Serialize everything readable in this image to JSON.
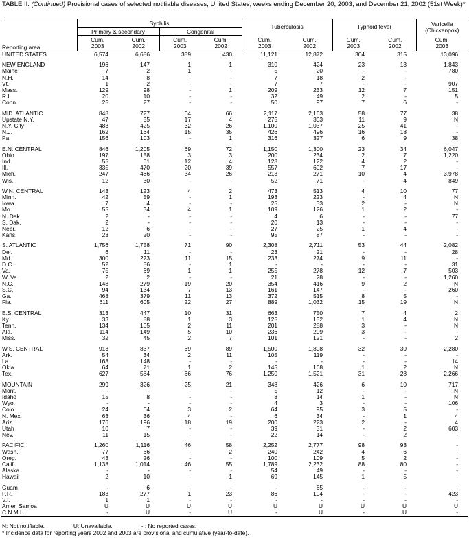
{
  "header": {
    "label": "TABLE II.",
    "continued": "(Continued)",
    "title": "Provisional cases of selected notifiable diseases, United States, weeks ending December 20, 2003, and December 21, 2002 (51st Week)*"
  },
  "table": {
    "row_header": "Reporting area",
    "column_groups": [
      "Syphilis",
      "Tuberculosis",
      "Typhoid fever",
      [
        "Varicella",
        "(Chickenpox)"
      ]
    ],
    "subgroups": [
      "Primary & secondary",
      "Congenital"
    ],
    "columns": [
      [
        "Cum.",
        "2003"
      ],
      [
        "Cum.",
        "2002"
      ],
      [
        "Cum.",
        "2003"
      ],
      [
        "Cum.",
        "2002"
      ],
      [
        "Cum.",
        "2003"
      ],
      [
        "Cum.",
        "2002"
      ],
      [
        "Cum.",
        "2003"
      ],
      [
        "Cum.",
        "2002"
      ],
      [
        "Cum.",
        "2003"
      ]
    ],
    "sections": [
      [
        [
          "UNITED STATES",
          "6,574",
          "6,686",
          "359",
          "430",
          "11,121",
          "12,872",
          "304",
          "315",
          "13,096"
        ]
      ],
      [
        [
          "NEW ENGLAND",
          "196",
          "147",
          "1",
          "1",
          "310",
          "424",
          "23",
          "13",
          "1,843"
        ],
        [
          "Maine",
          "7",
          "2",
          "1",
          "-",
          "5",
          "20",
          "-",
          "-",
          "780"
        ],
        [
          "N.H.",
          "14",
          "8",
          "-",
          "-",
          "7",
          "18",
          "2",
          "-",
          "-"
        ],
        [
          "Vt.",
          "1",
          "2",
          "-",
          "-",
          "7",
          "7",
          "-",
          "-",
          "907"
        ],
        [
          "Mass.",
          "129",
          "98",
          "-",
          "1",
          "209",
          "233",
          "12",
          "7",
          "151"
        ],
        [
          "R.I.",
          "20",
          "10",
          "-",
          "-",
          "32",
          "49",
          "2",
          "-",
          "5"
        ],
        [
          "Conn.",
          "25",
          "27",
          "-",
          "-",
          "50",
          "97",
          "7",
          "6",
          "-"
        ]
      ],
      [
        [
          "MID. ATLANTIC",
          "848",
          "727",
          "64",
          "66",
          "2,117",
          "2,163",
          "58",
          "77",
          "38"
        ],
        [
          "Upstate N.Y.",
          "47",
          "35",
          "17",
          "4",
          "275",
          "303",
          "11",
          "9",
          "N"
        ],
        [
          "N.Y. City",
          "483",
          "425",
          "32",
          "26",
          "1,100",
          "1,037",
          "25",
          "41",
          "-"
        ],
        [
          "N.J.",
          "162",
          "164",
          "15",
          "35",
          "426",
          "496",
          "16",
          "18",
          "-"
        ],
        [
          "Pa.",
          "156",
          "103",
          "-",
          "1",
          "316",
          "327",
          "6",
          "9",
          "38"
        ]
      ],
      [
        [
          "E.N. CENTRAL",
          "846",
          "1,205",
          "69",
          "72",
          "1,150",
          "1,300",
          "23",
          "34",
          "6,047"
        ],
        [
          "Ohio",
          "197",
          "158",
          "3",
          "3",
          "200",
          "234",
          "2",
          "7",
          "1,220"
        ],
        [
          "Ind.",
          "55",
          "61",
          "12",
          "4",
          "128",
          "122",
          "4",
          "2",
          "-"
        ],
        [
          "Ill.",
          "335",
          "470",
          "20",
          "39",
          "557",
          "602",
          "7",
          "17",
          "-"
        ],
        [
          "Mich.",
          "247",
          "486",
          "34",
          "26",
          "213",
          "271",
          "10",
          "4",
          "3,978"
        ],
        [
          "Wis.",
          "12",
          "30",
          "-",
          "-",
          "52",
          "71",
          "-",
          "4",
          "849"
        ]
      ],
      [
        [
          "W.N. CENTRAL",
          "143",
          "123",
          "4",
          "2",
          "473",
          "513",
          "4",
          "10",
          "77"
        ],
        [
          "Minn.",
          "42",
          "59",
          "-",
          "1",
          "193",
          "223",
          "-",
          "4",
          "N"
        ],
        [
          "Iowa",
          "7",
          "4",
          "-",
          "-",
          "25",
          "33",
          "2",
          "-",
          "N"
        ],
        [
          "Mo.",
          "55",
          "34",
          "4",
          "1",
          "109",
          "126",
          "1",
          "2",
          "-"
        ],
        [
          "N. Dak.",
          "2",
          "-",
          "-",
          "-",
          "4",
          "6",
          "-",
          "-",
          "77"
        ],
        [
          "S. Dak.",
          "2",
          "-",
          "-",
          "-",
          "20",
          "13",
          "-",
          "-",
          "-"
        ],
        [
          "Nebr.",
          "12",
          "6",
          "-",
          "-",
          "27",
          "25",
          "1",
          "4",
          "-"
        ],
        [
          "Kans.",
          "23",
          "20",
          "-",
          "-",
          "95",
          "87",
          "-",
          "-",
          "-"
        ]
      ],
      [
        [
          "S. ATLANTIC",
          "1,756",
          "1,758",
          "71",
          "90",
          "2,308",
          "2,711",
          "53",
          "44",
          "2,082"
        ],
        [
          "Del.",
          "6",
          "11",
          "-",
          "-",
          "23",
          "21",
          "-",
          "-",
          "28"
        ],
        [
          "Md.",
          "300",
          "223",
          "11",
          "15",
          "233",
          "274",
          "9",
          "11",
          "-"
        ],
        [
          "D.C.",
          "52",
          "56",
          "-",
          "1",
          "-",
          "-",
          "-",
          "-",
          "31"
        ],
        [
          "Va.",
          "75",
          "69",
          "1",
          "1",
          "255",
          "278",
          "12",
          "7",
          "503"
        ],
        [
          "W. Va.",
          "2",
          "2",
          "-",
          "-",
          "21",
          "28",
          "-",
          "-",
          "1,260"
        ],
        [
          "N.C.",
          "148",
          "279",
          "19",
          "20",
          "354",
          "416",
          "9",
          "2",
          "N"
        ],
        [
          "S.C.",
          "94",
          "134",
          "7",
          "13",
          "161",
          "147",
          "-",
          "-",
          "260"
        ],
        [
          "Ga.",
          "468",
          "379",
          "11",
          "13",
          "372",
          "515",
          "8",
          "5",
          "-"
        ],
        [
          "Fla.",
          "611",
          "605",
          "22",
          "27",
          "889",
          "1,032",
          "15",
          "19",
          "N"
        ]
      ],
      [
        [
          "E.S. CENTRAL",
          "313",
          "447",
          "10",
          "31",
          "663",
          "750",
          "7",
          "4",
          "2"
        ],
        [
          "Ky.",
          "33",
          "88",
          "1",
          "3",
          "125",
          "132",
          "1",
          "4",
          "N"
        ],
        [
          "Tenn.",
          "134",
          "165",
          "2",
          "11",
          "201",
          "288",
          "3",
          "-",
          "N"
        ],
        [
          "Ala.",
          "114",
          "149",
          "5",
          "10",
          "236",
          "209",
          "3",
          "-",
          "-"
        ],
        [
          "Miss.",
          "32",
          "45",
          "2",
          "7",
          "101",
          "121",
          "-",
          "-",
          "2"
        ]
      ],
      [
        [
          "W.S. CENTRAL",
          "913",
          "837",
          "69",
          "89",
          "1,500",
          "1,808",
          "32",
          "30",
          "2,280"
        ],
        [
          "Ark.",
          "54",
          "34",
          "2",
          "11",
          "105",
          "119",
          "-",
          "-",
          "-"
        ],
        [
          "La.",
          "168",
          "148",
          "-",
          "-",
          "-",
          "-",
          "-",
          "-",
          "14"
        ],
        [
          "Okla.",
          "64",
          "71",
          "1",
          "2",
          "145",
          "168",
          "1",
          "2",
          "N"
        ],
        [
          "Tex.",
          "627",
          "584",
          "66",
          "76",
          "1,250",
          "1,521",
          "31",
          "28",
          "2,266"
        ]
      ],
      [
        [
          "MOUNTAIN",
          "299",
          "326",
          "25",
          "21",
          "348",
          "426",
          "6",
          "10",
          "717"
        ],
        [
          "Mont.",
          "-",
          "-",
          "-",
          "-",
          "5",
          "12",
          "-",
          "-",
          "N"
        ],
        [
          "Idaho",
          "15",
          "8",
          "-",
          "-",
          "8",
          "14",
          "1",
          "-",
          "N"
        ],
        [
          "Wyo.",
          "-",
          "-",
          "-",
          "-",
          "4",
          "3",
          "-",
          "-",
          "106"
        ],
        [
          "Colo.",
          "24",
          "64",
          "3",
          "2",
          "64",
          "95",
          "3",
          "5",
          "-"
        ],
        [
          "N. Mex.",
          "63",
          "36",
          "4",
          "-",
          "6",
          "34",
          "-",
          "1",
          "4"
        ],
        [
          "Ariz.",
          "176",
          "196",
          "18",
          "19",
          "200",
          "223",
          "2",
          "-",
          "4"
        ],
        [
          "Utah",
          "10",
          "7",
          "-",
          "-",
          "39",
          "31",
          "-",
          "2",
          "603"
        ],
        [
          "Nev.",
          "11",
          "15",
          "-",
          "-",
          "22",
          "14",
          "-",
          "2",
          "-"
        ]
      ],
      [
        [
          "PACIFIC",
          "1,260",
          "1,116",
          "46",
          "58",
          "2,252",
          "2,777",
          "98",
          "93",
          "-"
        ],
        [
          "Wash.",
          "77",
          "66",
          "-",
          "2",
          "240",
          "242",
          "4",
          "6",
          "-"
        ],
        [
          "Oreg.",
          "43",
          "26",
          "-",
          "-",
          "100",
          "109",
          "5",
          "2",
          "-"
        ],
        [
          "Calif.",
          "1,138",
          "1,014",
          "46",
          "55",
          "1,789",
          "2,232",
          "88",
          "80",
          "-"
        ],
        [
          "Alaska",
          "-",
          "-",
          "-",
          "-",
          "54",
          "49",
          "-",
          "-",
          "-"
        ],
        [
          "Hawaii",
          "2",
          "10",
          "-",
          "1",
          "69",
          "145",
          "1",
          "5",
          "-"
        ]
      ],
      [
        [
          "Guam",
          "-",
          "6",
          "-",
          "-",
          "-",
          "65",
          "-",
          "-",
          "-"
        ],
        [
          "P.R.",
          "183",
          "277",
          "1",
          "23",
          "86",
          "104",
          "-",
          "-",
          "423"
        ],
        [
          "V.I.",
          "1",
          "1",
          "-",
          "-",
          "-",
          "-",
          "-",
          "-",
          "-"
        ],
        [
          "Amer. Samoa",
          "U",
          "U",
          "U",
          "U",
          "U",
          "U",
          "U",
          "U",
          "U"
        ],
        [
          "C.N.M.I.",
          "-",
          "U",
          "-",
          "U",
          "-",
          "U",
          "-",
          "U",
          "-"
        ]
      ]
    ]
  },
  "footer": {
    "legend": [
      "N: Not notifiable.",
      "U: Unavailable.",
      "- : No reported cases."
    ],
    "footnote": "* Incidence data for reporting years 2002 and 2003 are provisional and cumulative (year-to-date)."
  }
}
